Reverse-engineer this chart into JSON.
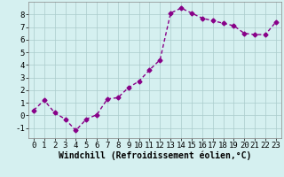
{
  "x": [
    0,
    1,
    2,
    3,
    4,
    5,
    6,
    7,
    8,
    9,
    10,
    11,
    12,
    13,
    14,
    15,
    16,
    17,
    18,
    19,
    20,
    21,
    22,
    23
  ],
  "y": [
    0.4,
    1.2,
    0.2,
    -0.3,
    -1.2,
    -0.3,
    0.05,
    1.3,
    1.4,
    2.2,
    2.7,
    3.6,
    4.4,
    8.1,
    8.5,
    8.1,
    7.7,
    7.5,
    7.3,
    7.1,
    6.5,
    6.4,
    6.4,
    7.4
  ],
  "xlabel": "Windchill (Refroidissement éolien,°C)",
  "ylim": [
    -1.8,
    9.0
  ],
  "xlim": [
    -0.5,
    23.5
  ],
  "yticks": [
    -1,
    0,
    1,
    2,
    3,
    4,
    5,
    6,
    7,
    8
  ],
  "xticks": [
    0,
    1,
    2,
    3,
    4,
    5,
    6,
    7,
    8,
    9,
    10,
    11,
    12,
    13,
    14,
    15,
    16,
    17,
    18,
    19,
    20,
    21,
    22,
    23
  ],
  "line_color": "#880088",
  "marker": "D",
  "marker_size": 2.5,
  "bg_color": "#d5f0f0",
  "grid_color": "#aacccc",
  "line_width": 1.0,
  "tick_fontsize": 6.5,
  "xlabel_fontsize": 7.0
}
